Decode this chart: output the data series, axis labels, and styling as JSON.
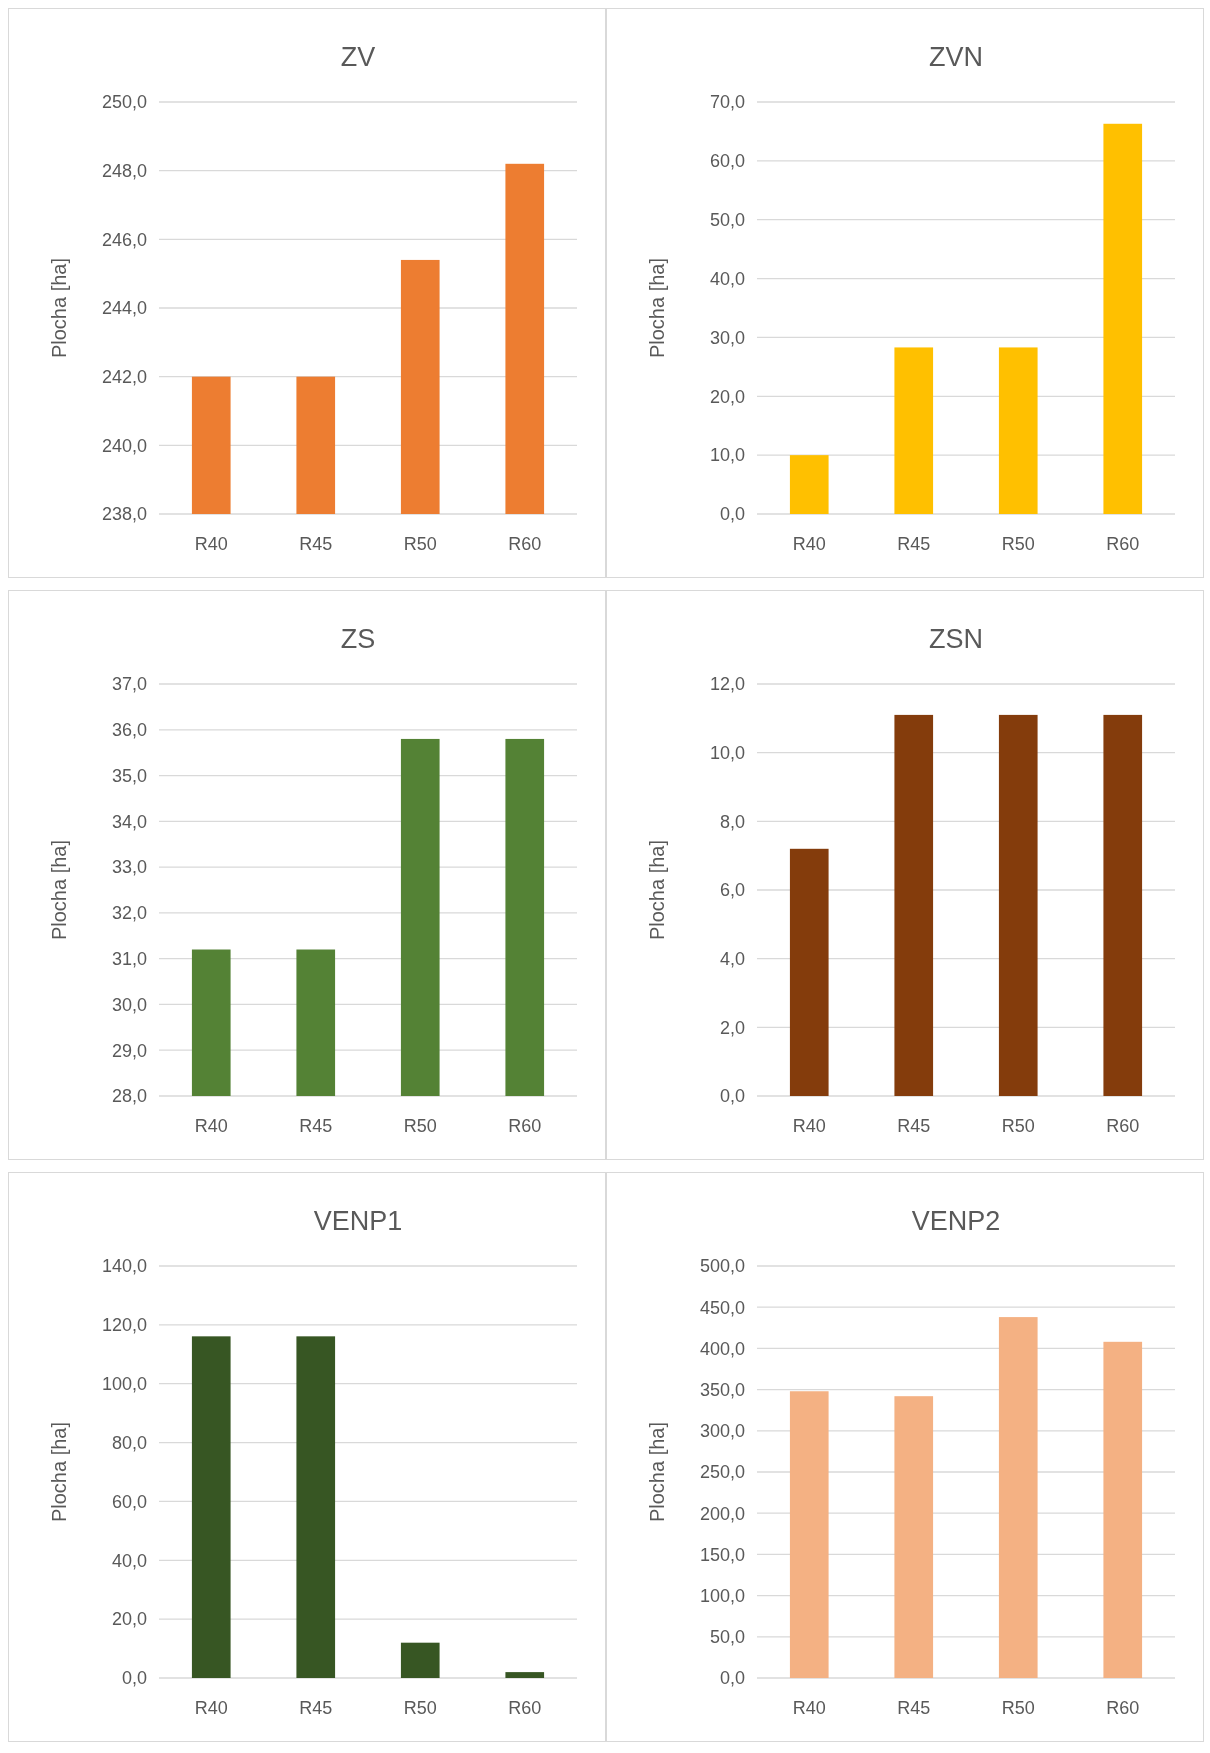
{
  "chart_data": [
    {
      "type": "bar",
      "title": "ZV",
      "ylabel": "Plocha [ha]",
      "categories": [
        "R40",
        "R45",
        "R50",
        "R60"
      ],
      "values": [
        242.0,
        242.0,
        245.4,
        248.2
      ],
      "color": "#ed7d31",
      "ylim": [
        238,
        250
      ],
      "yticks": [
        {
          "value": 238,
          "label": "238,0"
        },
        {
          "value": 240,
          "label": "240,0"
        },
        {
          "value": 242,
          "label": "242,0"
        },
        {
          "value": 244,
          "label": "244,0"
        },
        {
          "value": 246,
          "label": "246,0"
        },
        {
          "value": 248,
          "label": "248,0"
        },
        {
          "value": 250,
          "label": "250,0"
        }
      ],
      "grid": "y"
    },
    {
      "type": "bar",
      "title": "ZVN",
      "ylabel": "Plocha [ha]",
      "categories": [
        "R40",
        "R45",
        "R50",
        "R60"
      ],
      "values": [
        10.0,
        28.3,
        28.3,
        66.3
      ],
      "color": "#ffc000",
      "ylim": [
        0,
        70
      ],
      "yticks": [
        {
          "value": 0,
          "label": "0,0"
        },
        {
          "value": 10,
          "label": "10,0"
        },
        {
          "value": 20,
          "label": "20,0"
        },
        {
          "value": 30,
          "label": "30,0"
        },
        {
          "value": 40,
          "label": "40,0"
        },
        {
          "value": 50,
          "label": "50,0"
        },
        {
          "value": 60,
          "label": "60,0"
        },
        {
          "value": 70,
          "label": "70,0"
        }
      ],
      "grid": "y"
    },
    {
      "type": "bar",
      "title": "ZS",
      "ylabel": "Plocha [ha]",
      "categories": [
        "R40",
        "R45",
        "R50",
        "R60"
      ],
      "values": [
        31.2,
        31.2,
        35.8,
        35.8
      ],
      "color": "#548235",
      "ylim": [
        28,
        37
      ],
      "yticks": [
        {
          "value": 28,
          "label": "28,0"
        },
        {
          "value": 29,
          "label": "29,0"
        },
        {
          "value": 30,
          "label": "30,0"
        },
        {
          "value": 31,
          "label": "31,0"
        },
        {
          "value": 32,
          "label": "32,0"
        },
        {
          "value": 33,
          "label": "33,0"
        },
        {
          "value": 34,
          "label": "34,0"
        },
        {
          "value": 35,
          "label": "35,0"
        },
        {
          "value": 36,
          "label": "36,0"
        },
        {
          "value": 37,
          "label": "37,0"
        }
      ],
      "grid": "y"
    },
    {
      "type": "bar",
      "title": "ZSN",
      "ylabel": "Plocha [ha]",
      "categories": [
        "R40",
        "R45",
        "R50",
        "R60"
      ],
      "values": [
        7.2,
        11.1,
        11.1,
        11.1
      ],
      "color": "#843c0c",
      "ylim": [
        0,
        12
      ],
      "yticks": [
        {
          "value": 0,
          "label": "0,0"
        },
        {
          "value": 2,
          "label": "2,0"
        },
        {
          "value": 4,
          "label": "4,0"
        },
        {
          "value": 6,
          "label": "6,0"
        },
        {
          "value": 8,
          "label": "8,0"
        },
        {
          "value": 10,
          "label": "10,0"
        },
        {
          "value": 12,
          "label": "12,0"
        }
      ],
      "grid": "y"
    },
    {
      "type": "bar",
      "title": "VENP1",
      "ylabel": "Plocha [ha]",
      "categories": [
        "R40",
        "R45",
        "R50",
        "R60"
      ],
      "values": [
        116.1,
        116.1,
        12.0,
        2.0
      ],
      "color": "#375623",
      "ylim": [
        0,
        140
      ],
      "yticks": [
        {
          "value": 0,
          "label": "0,0"
        },
        {
          "value": 20,
          "label": "20,0"
        },
        {
          "value": 40,
          "label": "40,0"
        },
        {
          "value": 60,
          "label": "60,0"
        },
        {
          "value": 80,
          "label": "80,0"
        },
        {
          "value": 100,
          "label": "100,0"
        },
        {
          "value": 120,
          "label": "120,0"
        },
        {
          "value": 140,
          "label": "140,0"
        }
      ],
      "grid": "y"
    },
    {
      "type": "bar",
      "title": "VENP2",
      "ylabel": "Plocha [ha]",
      "categories": [
        "R40",
        "R45",
        "R50",
        "R60"
      ],
      "values": [
        348,
        342,
        438,
        408
      ],
      "color": "#f4b183",
      "ylim": [
        0,
        500
      ],
      "yticks": [
        {
          "value": 0,
          "label": "0,0"
        },
        {
          "value": 50,
          "label": "50,0"
        },
        {
          "value": 100,
          "label": "100,0"
        },
        {
          "value": 150,
          "label": "150,0"
        },
        {
          "value": 200,
          "label": "200,0"
        },
        {
          "value": 250,
          "label": "250,0"
        },
        {
          "value": 300,
          "label": "300,0"
        },
        {
          "value": 350,
          "label": "350,0"
        },
        {
          "value": 400,
          "label": "400,0"
        },
        {
          "value": 450,
          "label": "450,0"
        },
        {
          "value": 500,
          "label": "500,0"
        }
      ],
      "grid": "y"
    }
  ]
}
